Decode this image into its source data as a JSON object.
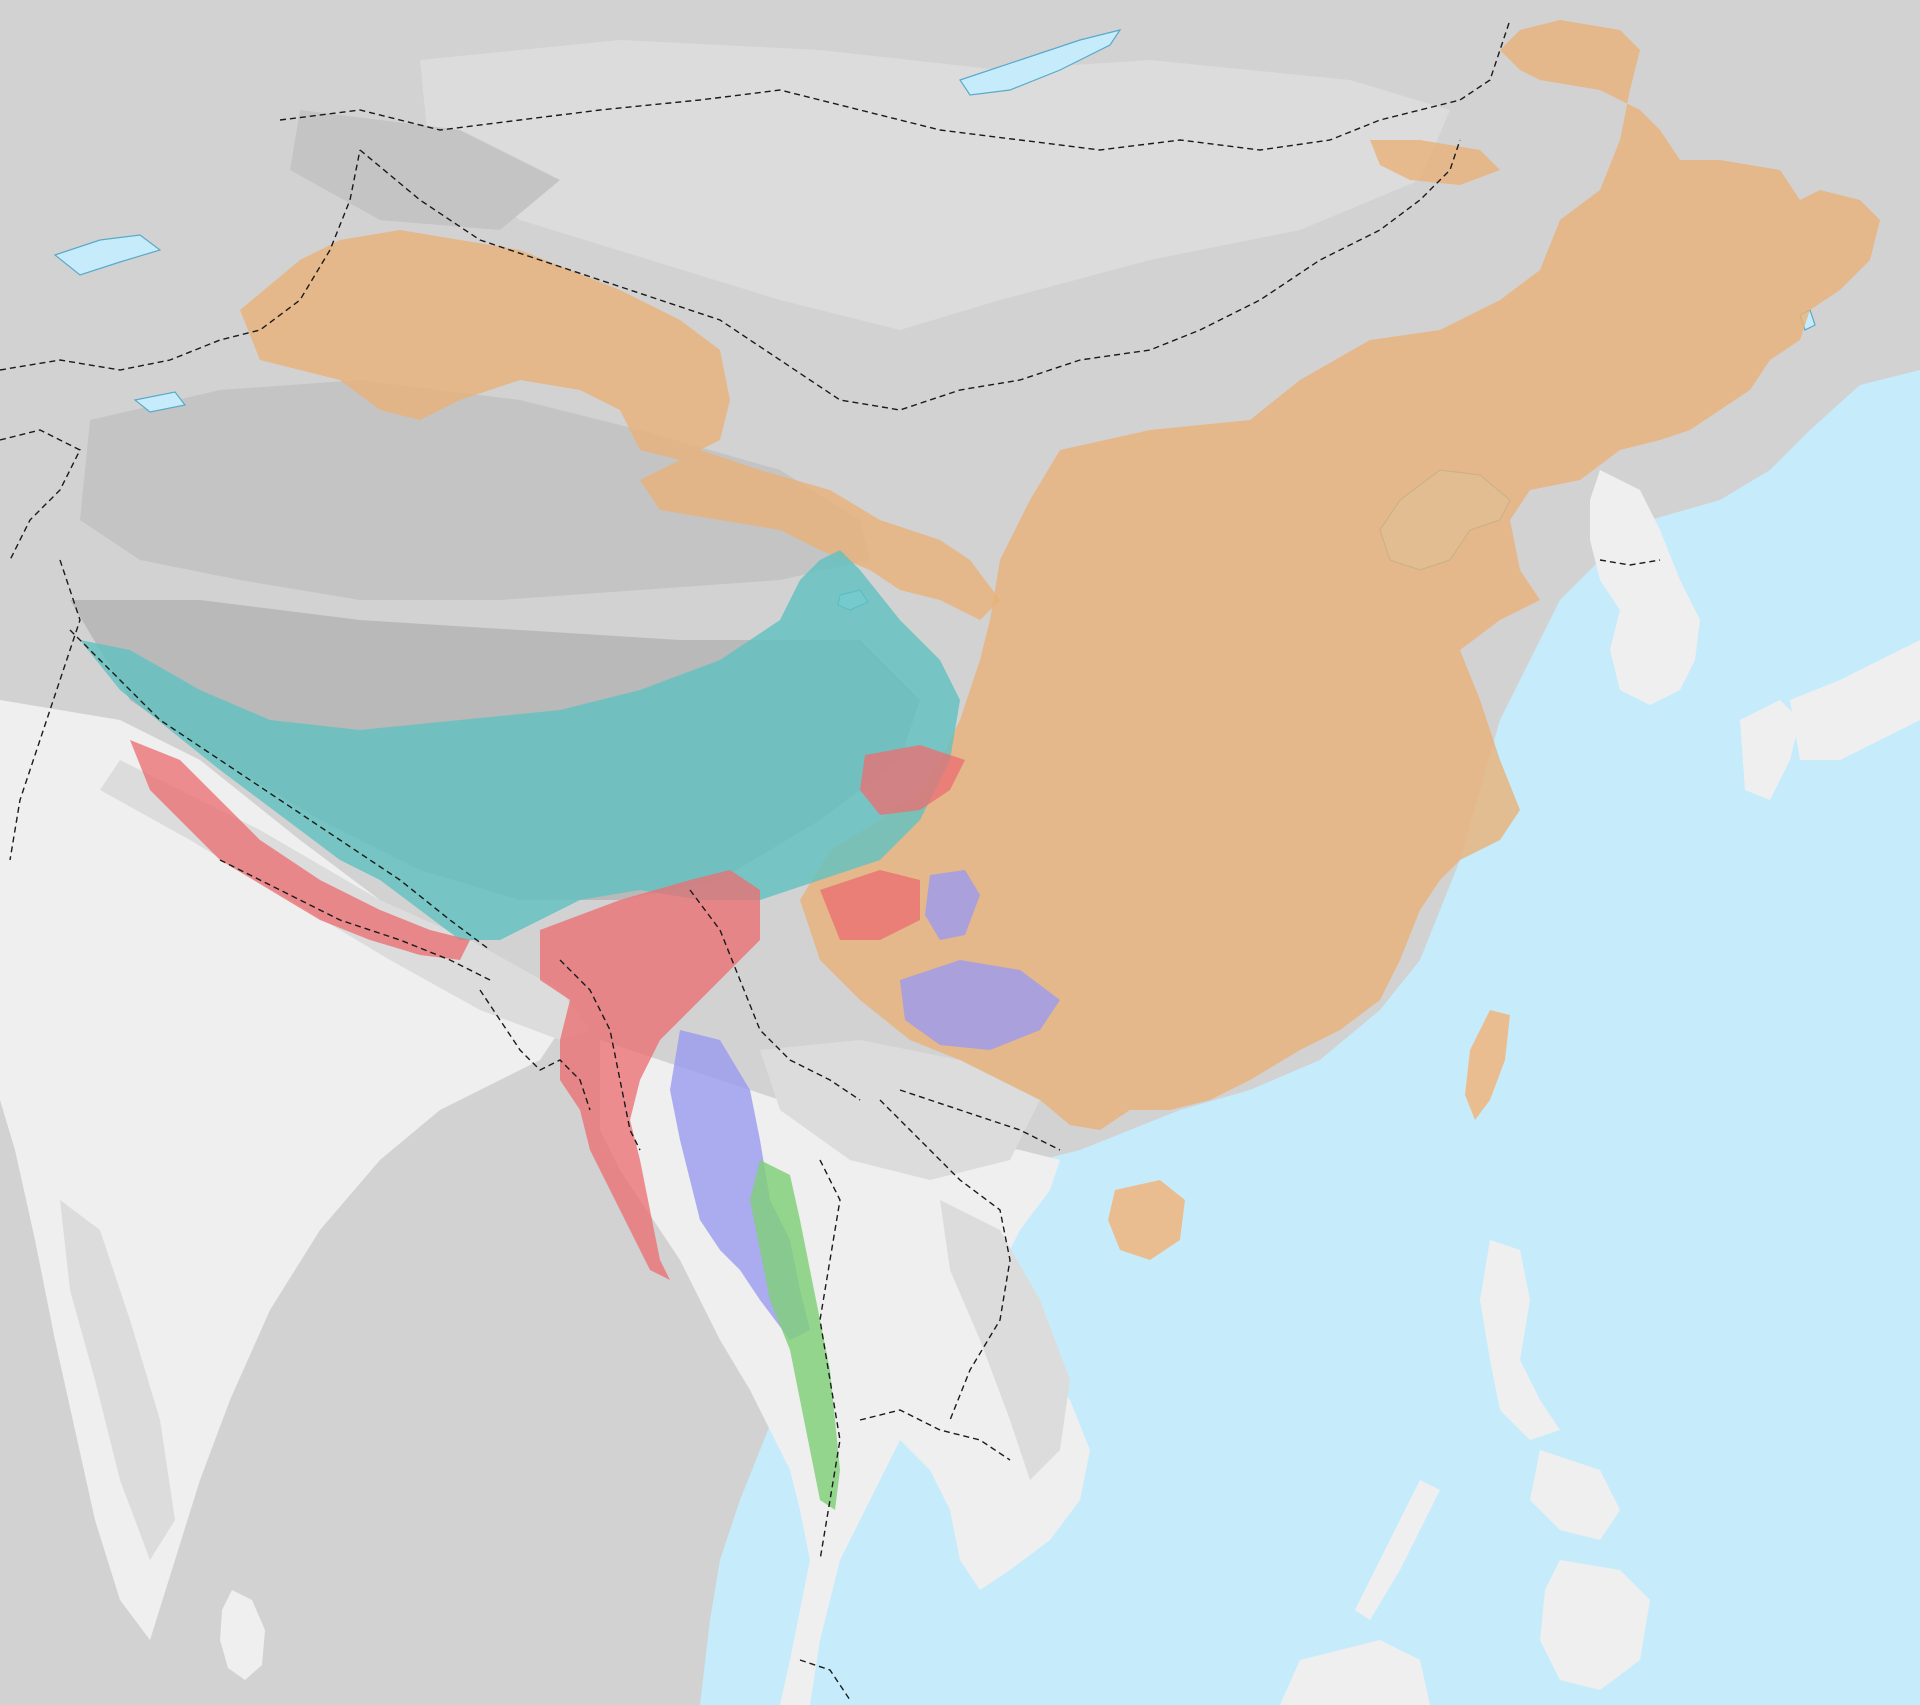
{
  "map": {
    "colors": {
      "sea": "#c6ecfc",
      "lake": "#c6ecfc",
      "coast": "#5aa9c9",
      "land_low": "#efefef",
      "land_mid": "#dcdcdc",
      "land_high": "#c4c4c4",
      "land_north": "#d2d2d2",
      "plateau": "#b9b9b9",
      "border": "#1a1a1a"
    },
    "regions": [
      {
        "id": "sinitic",
        "color": "#e8b27a",
        "opacity": 0.82
      },
      {
        "id": "tibetic",
        "color": "#5fc2c0",
        "opacity": 0.8
      },
      {
        "id": "himalayish",
        "color": "#ea6f72",
        "opacity": 0.78
      },
      {
        "id": "lolo-burmese",
        "color": "#9a9af0",
        "opacity": 0.8
      },
      {
        "id": "karenic",
        "color": "#7fcf78",
        "opacity": 0.82
      }
    ]
  }
}
